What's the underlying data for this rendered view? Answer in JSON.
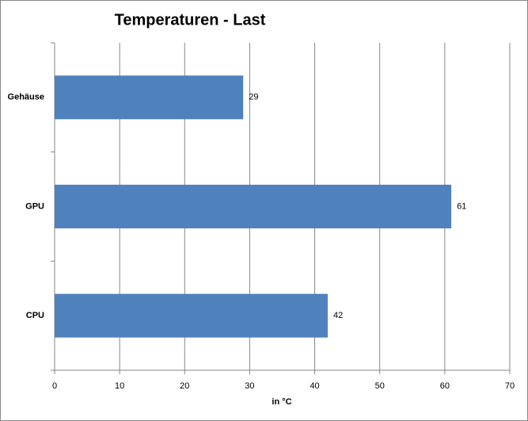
{
  "chart_data": {
    "type": "hbar",
    "title": "Temperaturen - Last",
    "categories": [
      "Gehäuse",
      "GPU",
      "CPU"
    ],
    "values": [
      29,
      61,
      42
    ],
    "color": "#4f81bd",
    "x_label": "in °C",
    "xlim": [
      0,
      70
    ],
    "xticks": [
      0,
      10,
      20,
      30,
      40,
      50,
      60,
      70
    ],
    "grid": true
  }
}
